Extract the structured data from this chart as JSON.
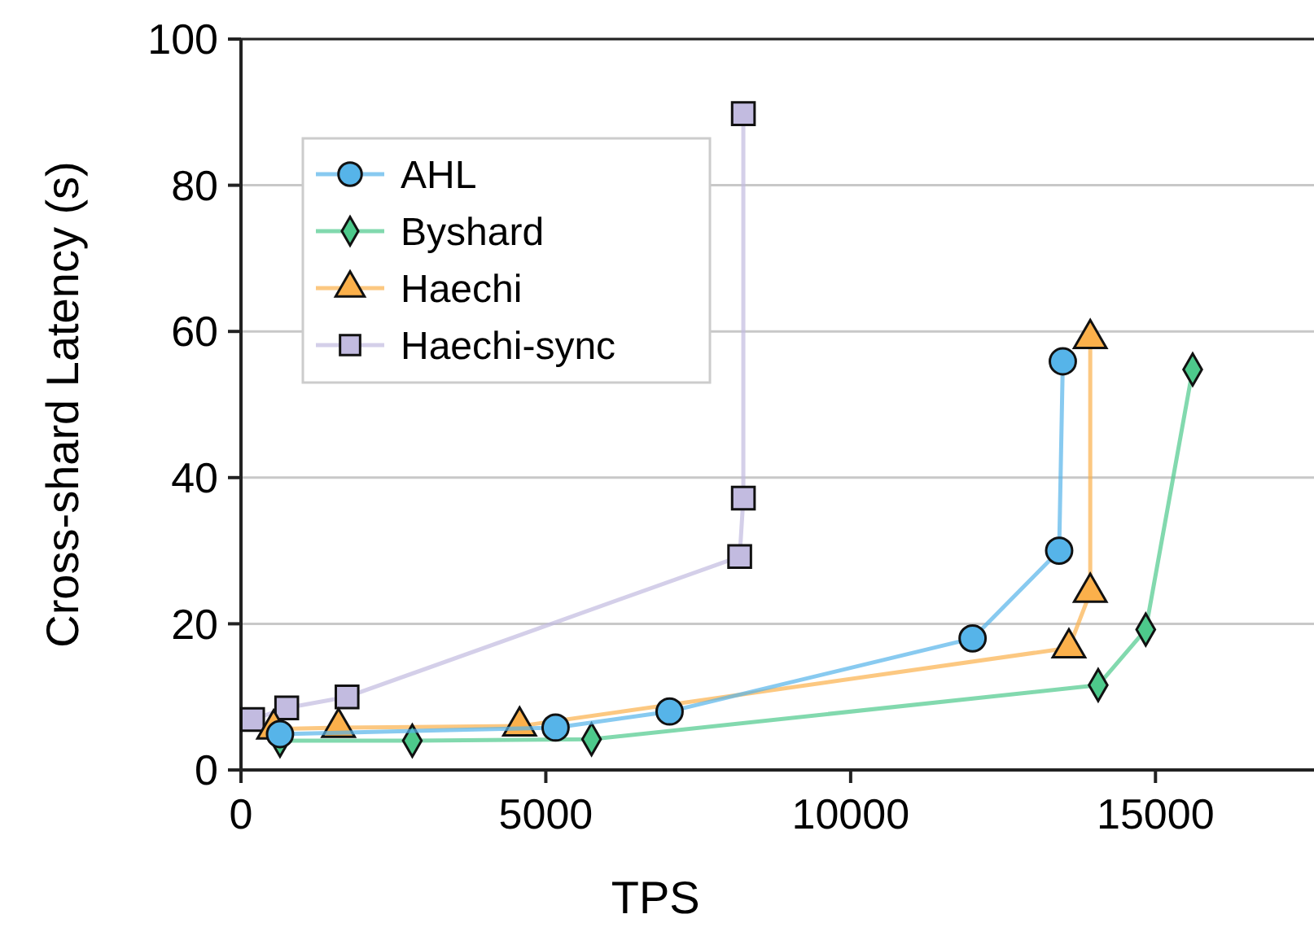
{
  "chart_data": {
    "type": "line",
    "xlabel": "TPS",
    "ylabel": "Cross-shard Latency (s)",
    "xlim": [
      0,
      17600
    ],
    "ylim": [
      0,
      100
    ],
    "xticks": [
      0,
      5000,
      10000,
      15000
    ],
    "yticks": [
      0,
      20,
      40,
      60,
      80,
      100
    ],
    "grid": "y",
    "legend": "top left",
    "line_style": "solid",
    "series": [
      {
        "name": "AHL",
        "color": "#56b4e9",
        "marker": "circle",
        "x": [
          640,
          5160,
          7030,
          12000,
          13420,
          13480
        ],
        "values": [
          4.9,
          5.8,
          8.0,
          18.0,
          30,
          55.9
        ]
      },
      {
        "name": "Byshard",
        "color": "#4dc98b",
        "marker": "diamond",
        "x": [
          640,
          2810,
          5750,
          14060,
          14840,
          15610
        ],
        "values": [
          4.0,
          4.0,
          4.2,
          11.6,
          19.2,
          54.8
        ]
      },
      {
        "name": "Haechi",
        "color": "#fbb04b",
        "marker": "triangle",
        "x": [
          535,
          1600,
          4570,
          13580,
          13930,
          13930
        ],
        "values": [
          5.6,
          5.8,
          6.0,
          16.7,
          24.3,
          59.0
        ]
      },
      {
        "name": "Haechi-sync",
        "color": "#c2bbe0",
        "marker": "square",
        "x": [
          190,
          750,
          1740,
          8180,
          8240,
          8240
        ],
        "values": [
          6.9,
          8.5,
          10.0,
          29.2,
          37.2,
          89.8
        ]
      }
    ]
  }
}
